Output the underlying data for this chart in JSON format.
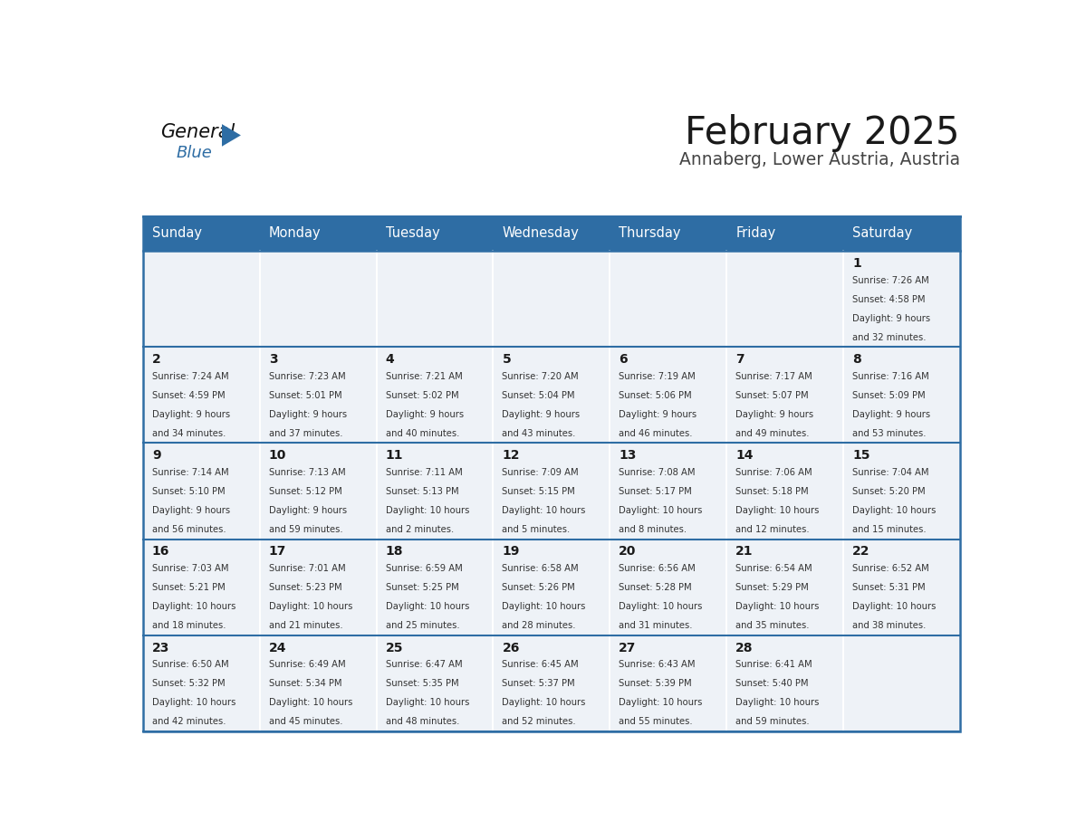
{
  "title": "February 2025",
  "subtitle": "Annaberg, Lower Austria, Austria",
  "header_color": "#2E6DA4",
  "header_text_color": "#FFFFFF",
  "cell_bg_color": "#EEF2F7",
  "border_color": "#2E6DA4",
  "day_headers": [
    "Sunday",
    "Monday",
    "Tuesday",
    "Wednesday",
    "Thursday",
    "Friday",
    "Saturday"
  ],
  "days": [
    {
      "day": 1,
      "col": 6,
      "row": 0,
      "sunrise": "7:26 AM",
      "sunset": "4:58 PM",
      "daylight": "9 hours and 32 minutes."
    },
    {
      "day": 2,
      "col": 0,
      "row": 1,
      "sunrise": "7:24 AM",
      "sunset": "4:59 PM",
      "daylight": "9 hours and 34 minutes."
    },
    {
      "day": 3,
      "col": 1,
      "row": 1,
      "sunrise": "7:23 AM",
      "sunset": "5:01 PM",
      "daylight": "9 hours and 37 minutes."
    },
    {
      "day": 4,
      "col": 2,
      "row": 1,
      "sunrise": "7:21 AM",
      "sunset": "5:02 PM",
      "daylight": "9 hours and 40 minutes."
    },
    {
      "day": 5,
      "col": 3,
      "row": 1,
      "sunrise": "7:20 AM",
      "sunset": "5:04 PM",
      "daylight": "9 hours and 43 minutes."
    },
    {
      "day": 6,
      "col": 4,
      "row": 1,
      "sunrise": "7:19 AM",
      "sunset": "5:06 PM",
      "daylight": "9 hours and 46 minutes."
    },
    {
      "day": 7,
      "col": 5,
      "row": 1,
      "sunrise": "7:17 AM",
      "sunset": "5:07 PM",
      "daylight": "9 hours and 49 minutes."
    },
    {
      "day": 8,
      "col": 6,
      "row": 1,
      "sunrise": "7:16 AM",
      "sunset": "5:09 PM",
      "daylight": "9 hours and 53 minutes."
    },
    {
      "day": 9,
      "col": 0,
      "row": 2,
      "sunrise": "7:14 AM",
      "sunset": "5:10 PM",
      "daylight": "9 hours and 56 minutes."
    },
    {
      "day": 10,
      "col": 1,
      "row": 2,
      "sunrise": "7:13 AM",
      "sunset": "5:12 PM",
      "daylight": "9 hours and 59 minutes."
    },
    {
      "day": 11,
      "col": 2,
      "row": 2,
      "sunrise": "7:11 AM",
      "sunset": "5:13 PM",
      "daylight": "10 hours and 2 minutes."
    },
    {
      "day": 12,
      "col": 3,
      "row": 2,
      "sunrise": "7:09 AM",
      "sunset": "5:15 PM",
      "daylight": "10 hours and 5 minutes."
    },
    {
      "day": 13,
      "col": 4,
      "row": 2,
      "sunrise": "7:08 AM",
      "sunset": "5:17 PM",
      "daylight": "10 hours and 8 minutes."
    },
    {
      "day": 14,
      "col": 5,
      "row": 2,
      "sunrise": "7:06 AM",
      "sunset": "5:18 PM",
      "daylight": "10 hours and 12 minutes."
    },
    {
      "day": 15,
      "col": 6,
      "row": 2,
      "sunrise": "7:04 AM",
      "sunset": "5:20 PM",
      "daylight": "10 hours and 15 minutes."
    },
    {
      "day": 16,
      "col": 0,
      "row": 3,
      "sunrise": "7:03 AM",
      "sunset": "5:21 PM",
      "daylight": "10 hours and 18 minutes."
    },
    {
      "day": 17,
      "col": 1,
      "row": 3,
      "sunrise": "7:01 AM",
      "sunset": "5:23 PM",
      "daylight": "10 hours and 21 minutes."
    },
    {
      "day": 18,
      "col": 2,
      "row": 3,
      "sunrise": "6:59 AM",
      "sunset": "5:25 PM",
      "daylight": "10 hours and 25 minutes."
    },
    {
      "day": 19,
      "col": 3,
      "row": 3,
      "sunrise": "6:58 AM",
      "sunset": "5:26 PM",
      "daylight": "10 hours and 28 minutes."
    },
    {
      "day": 20,
      "col": 4,
      "row": 3,
      "sunrise": "6:56 AM",
      "sunset": "5:28 PM",
      "daylight": "10 hours and 31 minutes."
    },
    {
      "day": 21,
      "col": 5,
      "row": 3,
      "sunrise": "6:54 AM",
      "sunset": "5:29 PM",
      "daylight": "10 hours and 35 minutes."
    },
    {
      "day": 22,
      "col": 6,
      "row": 3,
      "sunrise": "6:52 AM",
      "sunset": "5:31 PM",
      "daylight": "10 hours and 38 minutes."
    },
    {
      "day": 23,
      "col": 0,
      "row": 4,
      "sunrise": "6:50 AM",
      "sunset": "5:32 PM",
      "daylight": "10 hours and 42 minutes."
    },
    {
      "day": 24,
      "col": 1,
      "row": 4,
      "sunrise": "6:49 AM",
      "sunset": "5:34 PM",
      "daylight": "10 hours and 45 minutes."
    },
    {
      "day": 25,
      "col": 2,
      "row": 4,
      "sunrise": "6:47 AM",
      "sunset": "5:35 PM",
      "daylight": "10 hours and 48 minutes."
    },
    {
      "day": 26,
      "col": 3,
      "row": 4,
      "sunrise": "6:45 AM",
      "sunset": "5:37 PM",
      "daylight": "10 hours and 52 minutes."
    },
    {
      "day": 27,
      "col": 4,
      "row": 4,
      "sunrise": "6:43 AM",
      "sunset": "5:39 PM",
      "daylight": "10 hours and 55 minutes."
    },
    {
      "day": 28,
      "col": 5,
      "row": 4,
      "sunrise": "6:41 AM",
      "sunset": "5:40 PM",
      "daylight": "10 hours and 59 minutes."
    }
  ],
  "num_rows": 5,
  "num_cols": 7,
  "fig_width": 11.88,
  "fig_height": 9.18
}
